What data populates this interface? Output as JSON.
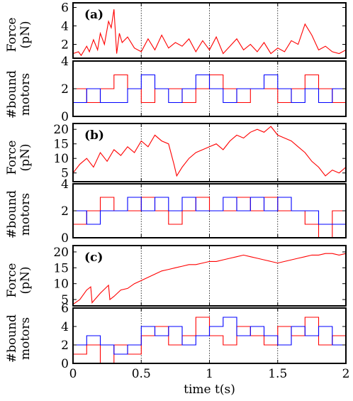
{
  "chart_data": [
    {
      "panel": "(a)",
      "type": "line",
      "quantity": "force",
      "ylabel": "Force (pN)",
      "ylabel_lines": [
        "Force",
        "(pN)"
      ],
      "xlim": [
        0,
        2
      ],
      "ylim": [
        0.5,
        6.5
      ],
      "yticks": [
        2,
        4,
        6
      ],
      "grid_x": [
        0.5,
        1,
        1.5
      ],
      "series": [
        {
          "color": "#ff0000",
          "x": [
            0,
            0.04,
            0.06,
            0.1,
            0.12,
            0.15,
            0.18,
            0.2,
            0.23,
            0.26,
            0.28,
            0.3,
            0.32,
            0.34,
            0.36,
            0.4,
            0.45,
            0.5,
            0.55,
            0.6,
            0.65,
            0.7,
            0.75,
            0.8,
            0.85,
            0.9,
            0.95,
            1.0,
            1.05,
            1.1,
            1.15,
            1.2,
            1.25,
            1.3,
            1.35,
            1.4,
            1.45,
            1.5,
            1.55,
            1.6,
            1.65,
            1.7,
            1.75,
            1.8,
            1.85,
            1.9,
            1.95,
            2.0
          ],
          "values": [
            1.0,
            1.2,
            0.8,
            1.8,
            1.2,
            2.5,
            1.4,
            3.2,
            2.0,
            4.5,
            3.8,
            5.8,
            1.0,
            3.2,
            2.2,
            2.8,
            1.6,
            1.2,
            2.6,
            1.4,
            3.0,
            1.6,
            2.2,
            1.8,
            2.6,
            1.2,
            2.4,
            1.4,
            2.8,
            1.0,
            1.8,
            2.6,
            1.4,
            2.0,
            1.2,
            2.2,
            1.0,
            1.6,
            1.2,
            2.4,
            2.0,
            4.2,
            3.0,
            1.4,
            1.8,
            1.2,
            1.0,
            1.4
          ]
        }
      ]
    },
    {
      "panel": "(a)",
      "type": "line",
      "quantity": "bound_motors",
      "ylabel": "#bound motors",
      "ylabel_lines": [
        "#bound",
        "motors"
      ],
      "xlim": [
        0,
        2
      ],
      "ylim": [
        0,
        4
      ],
      "yticks": [
        0,
        2,
        4
      ],
      "grid_x": [
        0.5,
        1,
        1.5
      ],
      "series": [
        {
          "color": "#ff0000",
          "x": [
            0,
            0.1,
            0.2,
            0.3,
            0.4,
            0.5,
            0.6,
            0.7,
            0.8,
            0.9,
            1.0,
            1.1,
            1.2,
            1.3,
            1.4,
            1.5,
            1.6,
            1.7,
            1.8,
            1.9,
            2.0
          ],
          "values": [
            2,
            1,
            2,
            3,
            2,
            1,
            2,
            2,
            1,
            2,
            3,
            2,
            1,
            2,
            2,
            1,
            2,
            3,
            2,
            1,
            2
          ]
        },
        {
          "color": "#0000ff",
          "x": [
            0,
            0.1,
            0.2,
            0.3,
            0.4,
            0.5,
            0.6,
            0.7,
            0.8,
            0.9,
            1.0,
            1.1,
            1.2,
            1.3,
            1.4,
            1.5,
            1.6,
            1.7,
            1.8,
            1.9,
            2.0
          ],
          "values": [
            1,
            2,
            1,
            1,
            2,
            3,
            2,
            1,
            2,
            3,
            2,
            1,
            2,
            2,
            3,
            2,
            1,
            2,
            1,
            2,
            2
          ]
        }
      ]
    },
    {
      "panel": "(b)",
      "type": "line",
      "quantity": "force",
      "ylabel": "Force (pN)",
      "ylabel_lines": [
        "Force",
        "(pN)"
      ],
      "xlim": [
        0,
        2
      ],
      "ylim": [
        2,
        22
      ],
      "yticks": [
        5,
        10,
        15,
        20
      ],
      "grid_x": [
        0.5,
        1,
        1.5
      ],
      "series": [
        {
          "color": "#ff0000",
          "x": [
            0,
            0.05,
            0.1,
            0.15,
            0.2,
            0.25,
            0.3,
            0.35,
            0.4,
            0.45,
            0.5,
            0.55,
            0.6,
            0.65,
            0.7,
            0.74,
            0.76,
            0.8,
            0.85,
            0.9,
            0.95,
            1.0,
            1.05,
            1.1,
            1.15,
            1.2,
            1.25,
            1.3,
            1.35,
            1.4,
            1.45,
            1.5,
            1.55,
            1.6,
            1.65,
            1.7,
            1.75,
            1.8,
            1.85,
            1.9,
            1.95,
            2.0
          ],
          "values": [
            5,
            8,
            10,
            7,
            12,
            9,
            13,
            11,
            14,
            12,
            16,
            14,
            18,
            16,
            15,
            8,
            4,
            7,
            10,
            12,
            13,
            14,
            15,
            13,
            16,
            18,
            17,
            19,
            20,
            19,
            21,
            18,
            17,
            16,
            14,
            12,
            9,
            7,
            4,
            6,
            5,
            7
          ]
        }
      ]
    },
    {
      "panel": "(b)",
      "type": "line",
      "quantity": "bound_motors",
      "ylabel": "#bound motors",
      "ylabel_lines": [
        "#bound",
        "motors"
      ],
      "xlim": [
        0,
        2
      ],
      "ylim": [
        0,
        4
      ],
      "yticks": [
        0,
        2,
        4
      ],
      "grid_x": [
        0.5,
        1,
        1.5
      ],
      "series": [
        {
          "color": "#ff0000",
          "x": [
            0,
            0.1,
            0.2,
            0.3,
            0.4,
            0.5,
            0.6,
            0.7,
            0.8,
            0.9,
            1.0,
            1.1,
            1.2,
            1.3,
            1.4,
            1.5,
            1.6,
            1.7,
            1.8,
            1.9,
            2.0
          ],
          "values": [
            1,
            2,
            3,
            2,
            2,
            3,
            2,
            1,
            2,
            3,
            2,
            2,
            3,
            2,
            3,
            2,
            2,
            1,
            0,
            2,
            1
          ]
        },
        {
          "color": "#0000ff",
          "x": [
            0,
            0.1,
            0.2,
            0.3,
            0.4,
            0.5,
            0.6,
            0.7,
            0.8,
            0.9,
            1.0,
            1.1,
            1.2,
            1.3,
            1.4,
            1.5,
            1.6,
            1.7,
            1.8,
            1.9,
            2.0
          ],
          "values": [
            2,
            1,
            2,
            2,
            3,
            2,
            3,
            2,
            3,
            2,
            2,
            3,
            2,
            3,
            2,
            3,
            2,
            2,
            1,
            1,
            2
          ]
        }
      ]
    },
    {
      "panel": "(c)",
      "type": "line",
      "quantity": "force",
      "ylabel": "Force (pN)",
      "ylabel_lines": [
        "Force",
        "(pN)"
      ],
      "xlim": [
        0,
        2
      ],
      "ylim": [
        3,
        22
      ],
      "yticks": [
        5,
        10,
        15,
        20
      ],
      "grid_x": [
        0.5,
        1,
        1.5
      ],
      "series": [
        {
          "color": "#ff0000",
          "x": [
            0,
            0.05,
            0.1,
            0.13,
            0.14,
            0.2,
            0.26,
            0.27,
            0.3,
            0.35,
            0.4,
            0.45,
            0.5,
            0.55,
            0.6,
            0.65,
            0.7,
            0.75,
            0.8,
            0.85,
            0.9,
            0.95,
            1.0,
            1.05,
            1.1,
            1.15,
            1.2,
            1.25,
            1.3,
            1.35,
            1.4,
            1.45,
            1.5,
            1.55,
            1.6,
            1.65,
            1.7,
            1.75,
            1.8,
            1.85,
            1.9,
            1.95,
            2.0
          ],
          "values": [
            3.5,
            5,
            8,
            9,
            4,
            7,
            9.5,
            5,
            6,
            8,
            8.5,
            10,
            11,
            12,
            13,
            14,
            14.5,
            15,
            15.5,
            16,
            16,
            16.5,
            17,
            17,
            17.5,
            18,
            18.5,
            19,
            18.5,
            18,
            17.5,
            17,
            16.5,
            17,
            17.5,
            18,
            18.5,
            19,
            19,
            19.5,
            19.5,
            19,
            19.5
          ]
        }
      ]
    },
    {
      "panel": "(c)",
      "type": "line",
      "quantity": "bound_motors",
      "ylabel": "#bound motors",
      "ylabel_lines": [
        "#bound",
        "motors"
      ],
      "xlim": [
        0,
        2
      ],
      "ylim": [
        0,
        6
      ],
      "yticks": [
        0,
        2,
        4,
        6
      ],
      "xticks": [
        0,
        0.5,
        1,
        1.5,
        2
      ],
      "xticklabels": [
        "0",
        "0.5",
        "1",
        "1.5",
        "2"
      ],
      "xlabel": "time t(s)",
      "grid_x": [
        0.5,
        1,
        1.5
      ],
      "series": [
        {
          "color": "#ff0000",
          "x": [
            0,
            0.1,
            0.2,
            0.3,
            0.4,
            0.5,
            0.6,
            0.7,
            0.8,
            0.9,
            1.0,
            1.1,
            1.2,
            1.3,
            1.4,
            1.5,
            1.6,
            1.7,
            1.8,
            1.9,
            2.0
          ],
          "values": [
            1,
            2,
            0,
            2,
            1,
            3,
            4,
            2,
            3,
            5,
            3,
            2,
            4,
            3,
            2,
            4,
            3,
            5,
            2,
            3,
            4
          ]
        },
        {
          "color": "#0000ff",
          "x": [
            0,
            0.1,
            0.2,
            0.3,
            0.4,
            0.5,
            0.6,
            0.7,
            0.8,
            0.9,
            1.0,
            1.1,
            1.2,
            1.3,
            1.4,
            1.5,
            1.6,
            1.7,
            1.8,
            1.9,
            2.0
          ],
          "values": [
            2,
            3,
            2,
            1,
            2,
            4,
            3,
            4,
            2,
            3,
            4,
            5,
            3,
            4,
            3,
            2,
            4,
            3,
            4,
            2,
            3
          ]
        }
      ]
    }
  ]
}
